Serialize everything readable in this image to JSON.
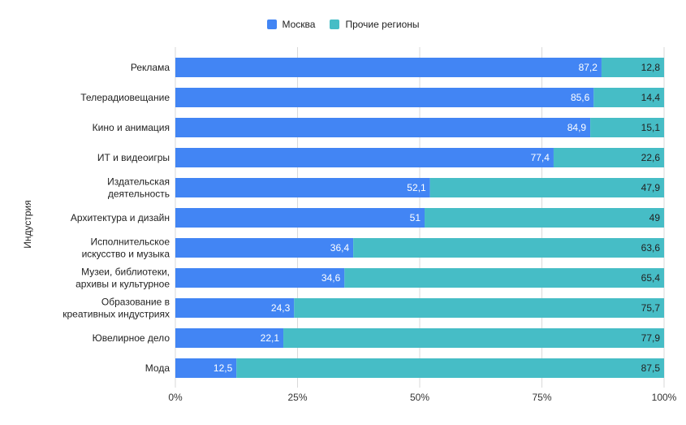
{
  "chart_data": {
    "type": "bar",
    "orientation": "horizontal",
    "stacked": true,
    "title": "",
    "xlabel": "",
    "ylabel": "Индустрия",
    "xlim": [
      0,
      100
    ],
    "xticks": [
      "0%",
      "25%",
      "50%",
      "75%",
      "100%"
    ],
    "legend_position": "top-center",
    "grid": true,
    "categories": [
      [
        "Реклама"
      ],
      [
        "Телерадиовещание"
      ],
      [
        "Кино и анимация"
      ],
      [
        "ИТ и видеоигры"
      ],
      [
        "Издательская",
        "деятельность"
      ],
      [
        "Архитектура и дизайн"
      ],
      [
        "Исполнительское",
        "искусство и музыка"
      ],
      [
        "Музеи, библиотеки,",
        "архивы и культурное"
      ],
      [
        "Образование в",
        "креативных индустриях"
      ],
      [
        "Ювелирное дело"
      ],
      [
        "Мода"
      ]
    ],
    "series": [
      {
        "name": "Москва",
        "color": "#4285f4",
        "values": [
          87.2,
          85.6,
          84.9,
          77.4,
          52.1,
          51,
          36.4,
          34.6,
          24.3,
          22.1,
          12.5
        ],
        "labels": [
          "87,2",
          "85,6",
          "84,9",
          "77,4",
          "52,1",
          "51",
          "36,4",
          "34,6",
          "24,3",
          "22,1",
          "12,5"
        ]
      },
      {
        "name": "Прочие регионы",
        "color": "#46bdc6",
        "values": [
          12.8,
          14.4,
          15.1,
          22.6,
          47.9,
          49,
          63.6,
          65.4,
          75.7,
          77.9,
          87.5
        ],
        "labels": [
          "12,8",
          "14,4",
          "15,1",
          "22,6",
          "47,9",
          "49",
          "63,6",
          "65,4",
          "75,7",
          "77,9",
          "87,5"
        ]
      }
    ]
  }
}
